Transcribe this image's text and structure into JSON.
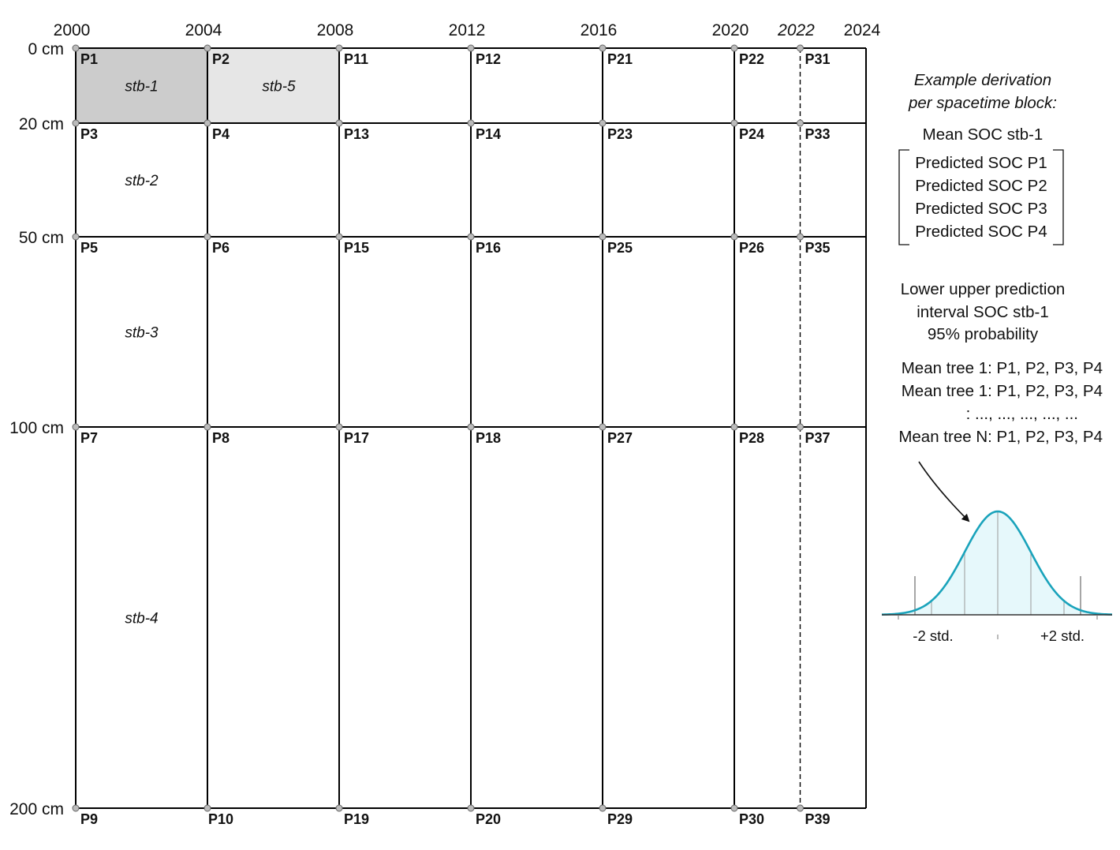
{
  "years": [
    {
      "label": "2000",
      "year": 2000,
      "line": "solid"
    },
    {
      "label": "2004",
      "year": 2004,
      "line": "solid"
    },
    {
      "label": "2008",
      "year": 2008,
      "line": "solid"
    },
    {
      "label": "2012",
      "year": 2012,
      "line": "solid"
    },
    {
      "label": "2016",
      "year": 2016,
      "line": "solid"
    },
    {
      "label": "2020",
      "year": 2020,
      "line": "solid"
    },
    {
      "label": "2022",
      "year": 2022,
      "line": "dashed",
      "italic": true
    },
    {
      "label": "2024",
      "year": 2024,
      "line": "none"
    }
  ],
  "depths": [
    {
      "label": "0 cm",
      "depth": 0
    },
    {
      "label": "20 cm",
      "depth": 20
    },
    {
      "label": "50 cm",
      "depth": 50
    },
    {
      "label": "100 cm",
      "depth": 100
    },
    {
      "label": "200 cm",
      "depth": 200
    }
  ],
  "points": [
    [
      "P1",
      "P2",
      "P11",
      "P12",
      "P21",
      "P22",
      "P31"
    ],
    [
      "P3",
      "P4",
      "P13",
      "P14",
      "P23",
      "P24",
      "P33"
    ],
    [
      "P5",
      "P6",
      "P15",
      "P16",
      "P25",
      "P26",
      "P35"
    ],
    [
      "P7",
      "P8",
      "P17",
      "P18",
      "P27",
      "P28",
      "P37"
    ],
    [
      "P9",
      "P10",
      "P19",
      "P20",
      "P29",
      "P30",
      "P39"
    ]
  ],
  "blocks": [
    {
      "label": "stb-1",
      "year_from": 2000,
      "year_to": 2004,
      "depth_from": 0,
      "depth_to": 20,
      "fill": "#cccccc"
    },
    {
      "label": "stb-5",
      "year_from": 2004,
      "year_to": 2008,
      "depth_from": 0,
      "depth_to": 20,
      "fill": "#e6e6e6"
    },
    {
      "label": "stb-2",
      "year_from": 2000,
      "year_to": 2004,
      "depth_from": 20,
      "depth_to": 50
    },
    {
      "label": "stb-3",
      "year_from": 2000,
      "year_to": 2004,
      "depth_from": 50,
      "depth_to": 100
    },
    {
      "label": "stb-4",
      "year_from": 2000,
      "year_to": 2004,
      "depth_from": 100,
      "depth_to": 200
    }
  ],
  "sidebar": {
    "heading_line1": "Example derivation",
    "heading_line2": "per spacetime block:",
    "mean_title": "Mean SOC stb-1",
    "predicted": [
      "Predicted SOC P1",
      "Predicted SOC P2",
      "Predicted SOC P3",
      "Predicted SOC P4"
    ],
    "interval_line1": "Lower upper prediction",
    "interval_line2": "interval SOC stb-1",
    "interval_line3": "95% probability",
    "trees": [
      "Mean tree 1: P1, P2, P3, P4",
      "Mean tree 1: P1, P2, P3, P4",
      ":  ..., ..., ..., ..., ...",
      "Mean tree N: P1, P2, P3, P4"
    ],
    "minus_std": "-2 std.",
    "plus_std": "+2 std."
  },
  "colors": {
    "grid": "#000000",
    "curve": "#1aa3bb",
    "curve_fill": "#e6f8fb",
    "marker": "#bbbbbb"
  }
}
